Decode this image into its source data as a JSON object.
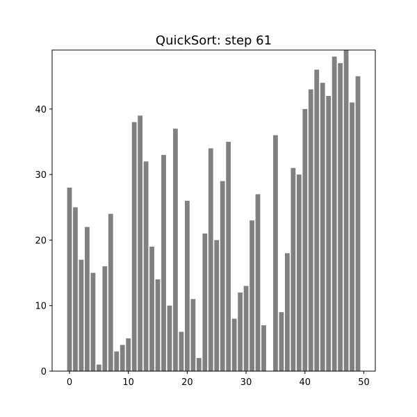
{
  "chart_data": {
    "type": "bar",
    "title": "QuickSort: step 61",
    "xlabel": "",
    "ylabel": "",
    "x": [
      0,
      1,
      2,
      3,
      4,
      5,
      6,
      7,
      8,
      9,
      10,
      11,
      12,
      13,
      14,
      15,
      16,
      17,
      18,
      19,
      20,
      21,
      22,
      23,
      24,
      25,
      26,
      27,
      28,
      29,
      30,
      31,
      32,
      33,
      34,
      35,
      36,
      37,
      38,
      39,
      40,
      41,
      42,
      43,
      44,
      45,
      46,
      47,
      48,
      49
    ],
    "values": [
      28,
      25,
      17,
      22,
      15,
      1,
      16,
      24,
      3,
      4,
      5,
      38,
      39,
      32,
      19,
      14,
      33,
      10,
      37,
      6,
      26,
      11,
      2,
      21,
      34,
      20,
      29,
      35,
      8,
      12,
      13,
      23,
      27,
      7,
      0,
      36,
      9,
      18,
      31,
      30,
      40,
      43,
      46,
      44,
      42,
      48,
      47,
      49,
      41,
      45
    ],
    "xlim": [
      -2.95,
      51.95
    ],
    "ylim": [
      0,
      49
    ],
    "xticks": [
      0,
      10,
      20,
      30,
      40,
      50
    ],
    "yticks": [
      0,
      10,
      20,
      30,
      40
    ],
    "bar_color": "#808080",
    "grid": false,
    "legend": "none"
  }
}
